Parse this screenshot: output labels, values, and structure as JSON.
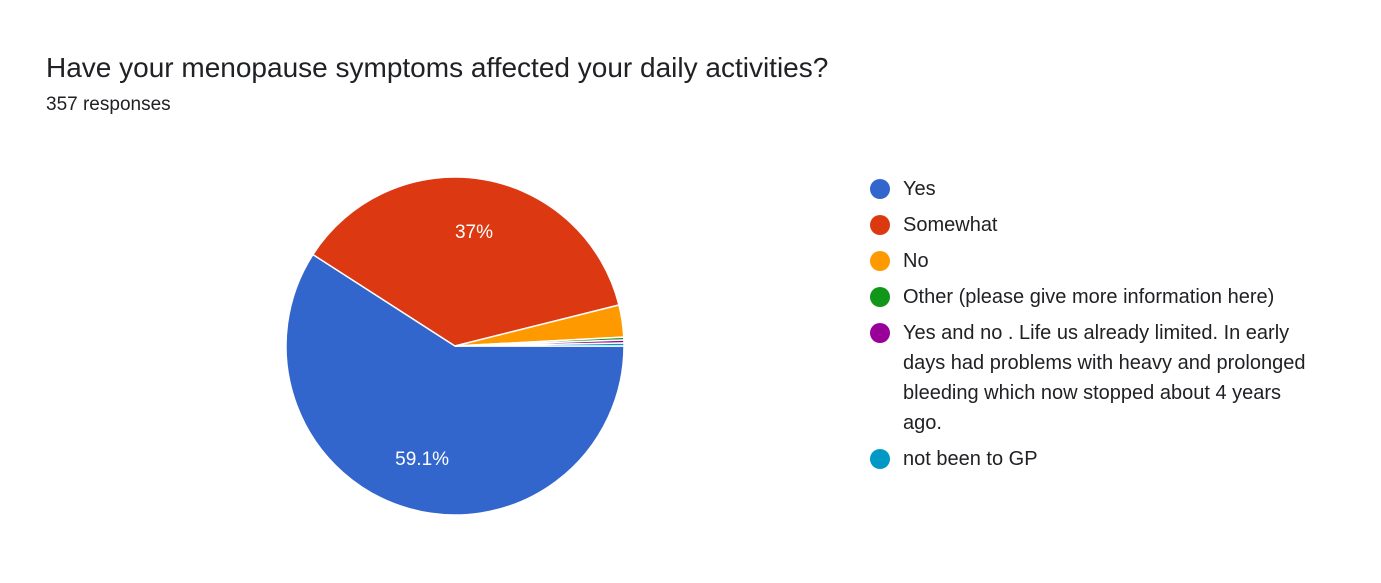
{
  "header": {
    "title": "Have your menopause symptoms affected your daily activities?",
    "subtitle": "357 responses"
  },
  "chart_data": {
    "type": "pie",
    "title": "Have your menopause symptoms affected your daily activities?",
    "subtitle": "357 responses",
    "categories": [
      "Yes",
      "Somewhat",
      "No",
      "Other (please give more information here)",
      "Yes and no . Life us already limited. In early days had problems with heavy and prolonged bleeding which now stopped about 4 years ago.",
      "not been to GP"
    ],
    "values": [
      59.1,
      37,
      3.06,
      0.28,
      0.28,
      0.28
    ],
    "data_labels": [
      "59.1%",
      "37%",
      "",
      "",
      "",
      ""
    ],
    "colors": [
      "#3366cc",
      "#dc3912",
      "#ff9900",
      "#109618",
      "#990099",
      "#0099c6"
    ],
    "legend_position": "right"
  }
}
